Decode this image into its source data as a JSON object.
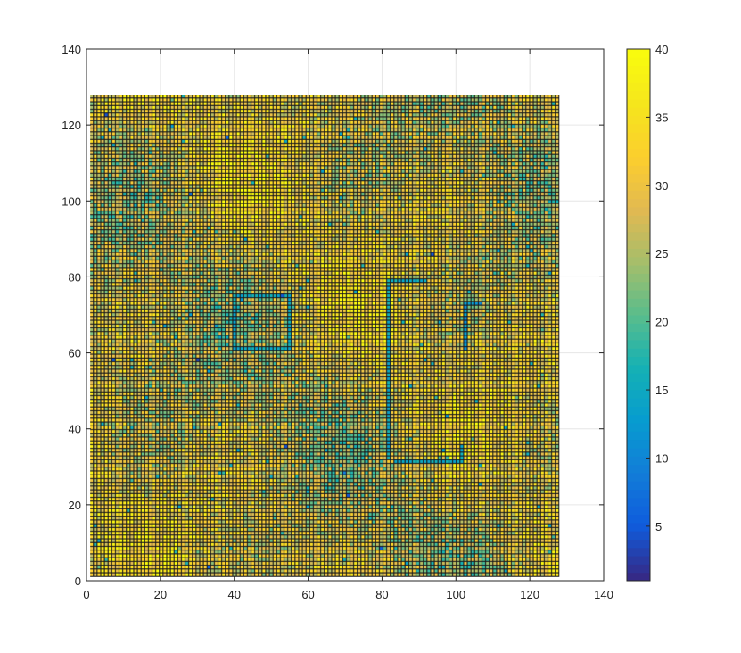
{
  "chart_data": {
    "type": "heatmap",
    "title": "",
    "xlabel": "",
    "ylabel": "",
    "xlim": [
      0,
      140
    ],
    "ylim": [
      0,
      140
    ],
    "x_ticks": [
      0,
      20,
      40,
      60,
      80,
      100,
      120,
      140
    ],
    "y_ticks": [
      0,
      20,
      40,
      60,
      80,
      100,
      120,
      140
    ],
    "grid": true,
    "grid_size": [
      128,
      128
    ],
    "cell_extent": {
      "x": [
        1,
        128
      ],
      "y": [
        1,
        128
      ]
    },
    "values_description": "128x128 grid of values, mostly in 25-40 range with lower-value (10-20) structures",
    "structures": [
      {
        "kind": "rectangle_outline",
        "x": [
          40,
          55
        ],
        "y": [
          61,
          75
        ],
        "value": 15
      },
      {
        "kind": "polyline",
        "points": [
          [
            82,
            32
          ],
          [
            82,
            79
          ],
          [
            92,
            79
          ]
        ],
        "value": 15
      },
      {
        "kind": "polyline",
        "points": [
          [
            84,
            31
          ],
          [
            102,
            31
          ],
          [
            102,
            35
          ]
        ],
        "value": 15
      },
      {
        "kind": "polyline",
        "points": [
          [
            103,
            61
          ],
          [
            103,
            73
          ],
          [
            107,
            73
          ]
        ],
        "value": 12
      }
    ],
    "colorbar": {
      "position": "right",
      "range": [
        1,
        40
      ],
      "ticks": [
        5,
        10,
        15,
        20,
        25,
        30,
        35,
        40
      ],
      "colormap": "parula"
    }
  },
  "colors": {
    "background": "#ffffff",
    "axis": "#262626",
    "grid": "#e6e6e6",
    "cell_border": "#1a1a1a"
  }
}
